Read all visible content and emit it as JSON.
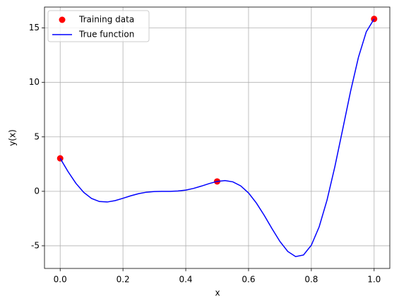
{
  "chart_data": {
    "type": "line",
    "xlabel": "x",
    "ylabel": "y(x)",
    "xlim": [
      -0.05,
      1.05
    ],
    "ylim": [
      -7.08,
      16.92
    ],
    "xticks": [
      {
        "value": 0,
        "label": "0.0"
      },
      {
        "value": 0.2,
        "label": "0.2"
      },
      {
        "value": 0.4,
        "label": "0.4"
      },
      {
        "value": 0.6,
        "label": "0.6"
      },
      {
        "value": 0.8,
        "label": "0.8"
      },
      {
        "value": 1,
        "label": "1.0"
      }
    ],
    "yticks": [
      -5,
      0,
      5,
      10,
      15
    ],
    "grid": true,
    "legend": "upper-left",
    "series": [
      {
        "name": "Training data",
        "type": "scatter",
        "color": "#ff0000",
        "x": [
          0,
          0.5,
          1
        ],
        "values": [
          3.0272,
          0.9093,
          15.8297
        ]
      },
      {
        "name": "True function",
        "type": "line",
        "color": "#0000ff",
        "x": [
          0,
          0.025,
          0.05,
          0.075,
          0.1,
          0.125,
          0.15,
          0.175,
          0.2,
          0.225,
          0.25,
          0.275,
          0.3,
          0.325,
          0.35,
          0.375,
          0.4,
          0.425,
          0.45,
          0.475,
          0.5,
          0.525,
          0.55,
          0.575,
          0.6,
          0.625,
          0.65,
          0.675,
          0.7,
          0.725,
          0.75,
          0.775,
          0.8,
          0.825,
          0.85,
          0.875,
          0.9,
          0.925,
          0.95,
          0.975,
          1
        ],
        "values": [
          3.0272,
          1.8134,
          0.7385,
          -0.0999,
          -0.6566,
          -0.9351,
          -0.9783,
          -0.854,
          -0.6397,
          -0.4071,
          -0.2104,
          -0.0789,
          -0.0156,
          -0.0002,
          0.002,
          0.03,
          0.1148,
          0.2696,
          0.4829,
          0.7165,
          0.9093,
          0.9862,
          0.8712,
          0.503,
          -0.1494,
          -1.0743,
          -2.2088,
          -3.4388,
          -4.6058,
          -5.5221,
          -5.9933,
          -5.8446,
          -4.9491,
          -3.2536,
          -0.7985,
          2.2722,
          5.7119,
          9.1869,
          12.3033,
          14.6471,
          15.8297
        ]
      }
    ]
  }
}
